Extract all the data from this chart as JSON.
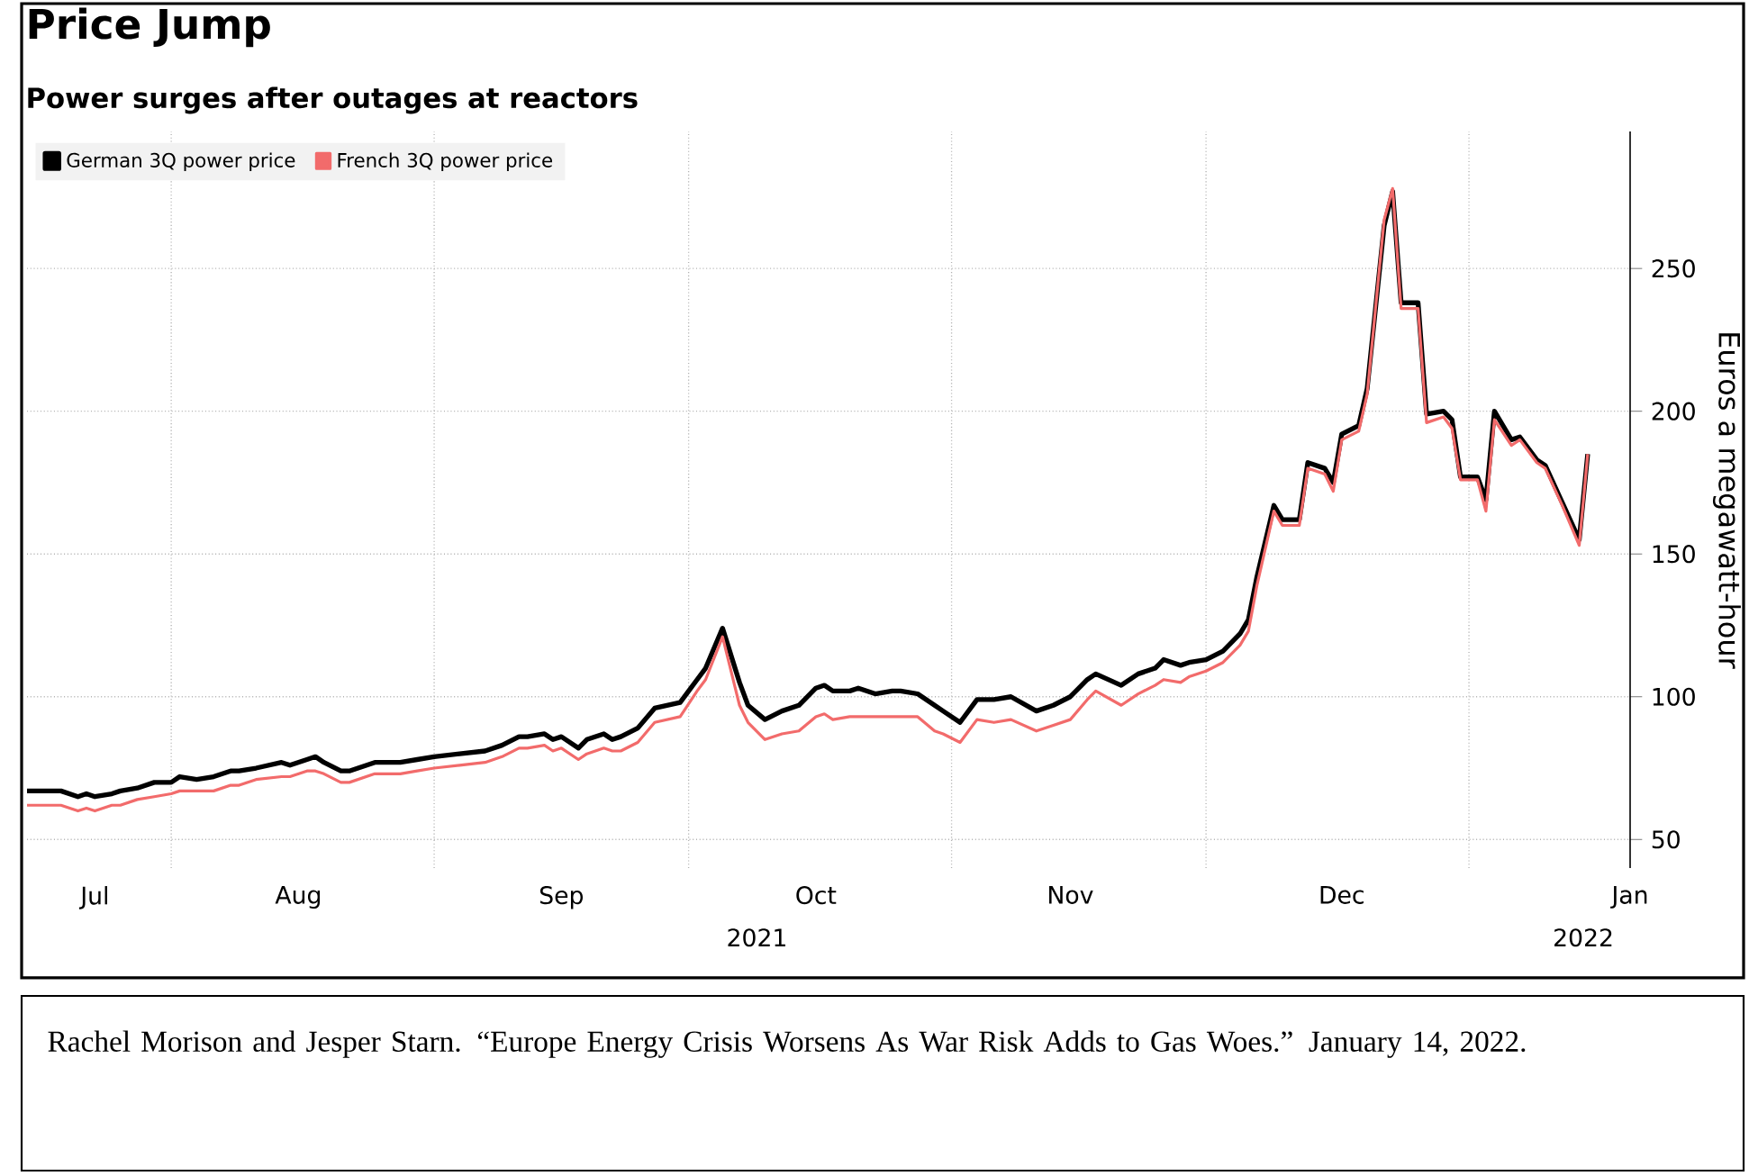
{
  "chart_data": {
    "type": "line",
    "title": "Price Jump",
    "subtitle": "Power surges after outages at reactors",
    "ylabel": "Euros a megawatt-hour",
    "annotations": [
      "2021",
      "2022",
      "Rachel Morison and Jesper Starn. “Europe Energy Crisis Worsens As War Risk Adds to Gas Woes.” January 14, 2022."
    ],
    "x": [
      "2021-07-15",
      "2021-07-19",
      "2021-07-21",
      "2021-07-22",
      "2021-07-23",
      "2021-07-25",
      "2021-07-26",
      "2021-07-28",
      "2021-07-30",
      "2021-08-01",
      "2021-08-02",
      "2021-08-04",
      "2021-08-06",
      "2021-08-08",
      "2021-08-09",
      "2021-08-11",
      "2021-08-14",
      "2021-08-15",
      "2021-08-17",
      "2021-08-18",
      "2021-08-19",
      "2021-08-21",
      "2021-08-22",
      "2021-08-25",
      "2021-08-28",
      "2021-08-30",
      "2021-09-01",
      "2021-09-04",
      "2021-09-07",
      "2021-09-09",
      "2021-09-11",
      "2021-09-12",
      "2021-09-14",
      "2021-09-15",
      "2021-09-16",
      "2021-09-18",
      "2021-09-19",
      "2021-09-21",
      "2021-09-22",
      "2021-09-23",
      "2021-09-25",
      "2021-09-27",
      "2021-09-30",
      "2021-10-02",
      "2021-10-03",
      "2021-10-05",
      "2021-10-07",
      "2021-10-08",
      "2021-10-10",
      "2021-10-12",
      "2021-10-14",
      "2021-10-16",
      "2021-10-17",
      "2021-10-18",
      "2021-10-20",
      "2021-10-21",
      "2021-10-23",
      "2021-10-25",
      "2021-10-26",
      "2021-10-28",
      "2021-10-30",
      "2021-10-31",
      "2021-11-02",
      "2021-11-04",
      "2021-11-06",
      "2021-11-08",
      "2021-11-11",
      "2021-11-13",
      "2021-11-15",
      "2021-11-17",
      "2021-11-18",
      "2021-11-21",
      "2021-11-23",
      "2021-11-25",
      "2021-11-26",
      "2021-11-28",
      "2021-11-29",
      "2021-12-01",
      "2021-12-03",
      "2021-12-05",
      "2021-12-06",
      "2021-12-07",
      "2021-12-09",
      "2021-12-10",
      "2021-12-12",
      "2021-12-13",
      "2021-12-15",
      "2021-12-16",
      "2021-12-17",
      "2021-12-19",
      "2021-12-20",
      "2021-12-22",
      "2021-12-23",
      "2021-12-24",
      "2021-12-26",
      "2021-12-27",
      "2021-12-29",
      "2021-12-30",
      "2021-12-31",
      "2022-01-02",
      "2022-01-03",
      "2022-01-04",
      "2022-01-06",
      "2022-01-07",
      "2022-01-09",
      "2022-01-10",
      "2022-01-12",
      "2022-01-14",
      "2022-01-15"
    ],
    "series": [
      {
        "name": "German 3Q power price",
        "color": "#000000",
        "values": [
          67,
          67,
          65,
          66,
          65,
          66,
          67,
          68,
          70,
          70,
          72,
          71,
          72,
          74,
          74,
          75,
          77,
          76,
          78,
          79,
          77,
          74,
          74,
          77,
          77,
          78,
          79,
          80,
          81,
          83,
          86,
          86,
          87,
          85,
          86,
          82,
          85,
          87,
          85,
          86,
          89,
          96,
          98,
          106,
          110,
          124,
          105,
          97,
          92,
          95,
          97,
          103,
          104,
          102,
          102,
          103,
          101,
          102,
          102,
          101,
          97,
          95,
          91,
          99,
          99,
          100,
          95,
          97,
          100,
          106,
          108,
          104,
          108,
          110,
          113,
          111,
          112,
          113,
          116,
          122,
          127,
          142,
          167,
          162,
          162,
          182,
          180,
          175,
          192,
          195,
          208,
          265,
          277,
          238,
          238,
          199,
          200,
          197,
          177,
          177,
          169,
          200,
          190,
          191,
          183,
          181,
          168,
          155,
          185
        ]
      },
      {
        "name": "French 3Q power price",
        "color": "#f26b6b",
        "values": [
          62,
          62,
          60,
          61,
          60,
          62,
          62,
          64,
          65,
          66,
          67,
          67,
          67,
          69,
          69,
          71,
          72,
          72,
          74,
          74,
          73,
          70,
          70,
          73,
          73,
          74,
          75,
          76,
          77,
          79,
          82,
          82,
          83,
          81,
          82,
          78,
          80,
          82,
          81,
          81,
          84,
          91,
          93,
          102,
          106,
          121,
          97,
          91,
          85,
          87,
          88,
          93,
          94,
          92,
          93,
          93,
          93,
          93,
          93,
          93,
          88,
          87,
          84,
          92,
          91,
          92,
          88,
          90,
          92,
          99,
          102,
          97,
          101,
          104,
          106,
          105,
          107,
          109,
          112,
          118,
          123,
          139,
          165,
          160,
          160,
          180,
          178,
          172,
          190,
          193,
          206,
          267,
          278,
          236,
          236,
          196,
          198,
          194,
          176,
          176,
          165,
          197,
          188,
          190,
          182,
          180,
          167,
          153,
          185
        ]
      }
    ],
    "xlim": [
      "2021-07-15",
      "2022-01-20"
    ],
    "xticks": [
      {
        "value": "2021-08-01",
        "label": null
      },
      {
        "value": "2021-09-01",
        "label": null
      },
      {
        "value": "2021-10-01",
        "label": null
      },
      {
        "value": "2021-11-01",
        "label": null
      },
      {
        "value": "2021-12-01",
        "label": null
      },
      {
        "value": "2022-01-01",
        "label": null
      },
      {
        "value": "2021-07-23",
        "label": "Jul"
      },
      {
        "value": "2021-08-16",
        "label": "Aug"
      },
      {
        "value": "2021-09-16",
        "label": "Sep"
      },
      {
        "value": "2021-10-16",
        "label": "Oct"
      },
      {
        "value": "2021-11-15",
        "label": "Nov"
      },
      {
        "value": "2021-12-17",
        "label": "Dec"
      },
      {
        "value": "2022-01-20",
        "label": "Jan"
      }
    ],
    "ylim": [
      40,
      298
    ],
    "yticks": [
      50,
      100,
      150,
      200,
      250
    ],
    "grid": true,
    "legend": "top left",
    "line_style": "solid"
  }
}
